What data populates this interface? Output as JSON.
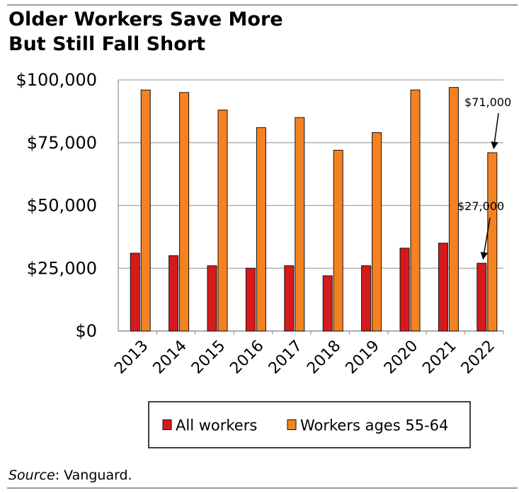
{
  "header": {
    "title_line1": "Older Workers Save More",
    "title_line2": "But Still Fall Short"
  },
  "footer": {
    "source_label": "Source",
    "source_text": ": Vanguard."
  },
  "chart_data": {
    "type": "bar",
    "title": "Older Workers Save More But Still Fall Short",
    "categories": [
      "2013",
      "2014",
      "2015",
      "2016",
      "2017",
      "2018",
      "2019",
      "2020",
      "2021",
      "2022"
    ],
    "series": [
      {
        "name": "All workers",
        "color": "#d7191c",
        "values": [
          31000,
          30000,
          26000,
          25000,
          26000,
          22000,
          26000,
          33000,
          35000,
          27000
        ]
      },
      {
        "name": "Workers ages 55-64",
        "color": "#f58220",
        "values": [
          96000,
          95000,
          88000,
          81000,
          85000,
          72000,
          79000,
          96000,
          97000,
          71000
        ]
      }
    ],
    "ylim": [
      0,
      100000
    ],
    "yticks": [
      0,
      25000,
      50000,
      75000,
      100000
    ],
    "ytick_labels": [
      "$0",
      "$25,000",
      "$50,000",
      "$75,000",
      "$100,000"
    ],
    "grid": true,
    "legend_position": "bottom",
    "annotations": [
      {
        "text": "$71,000",
        "category": "2022",
        "series": "Workers ages 55-64",
        "value": 71000
      },
      {
        "text": "$27,000",
        "category": "2022",
        "series": "All workers",
        "value": 27000
      }
    ]
  }
}
